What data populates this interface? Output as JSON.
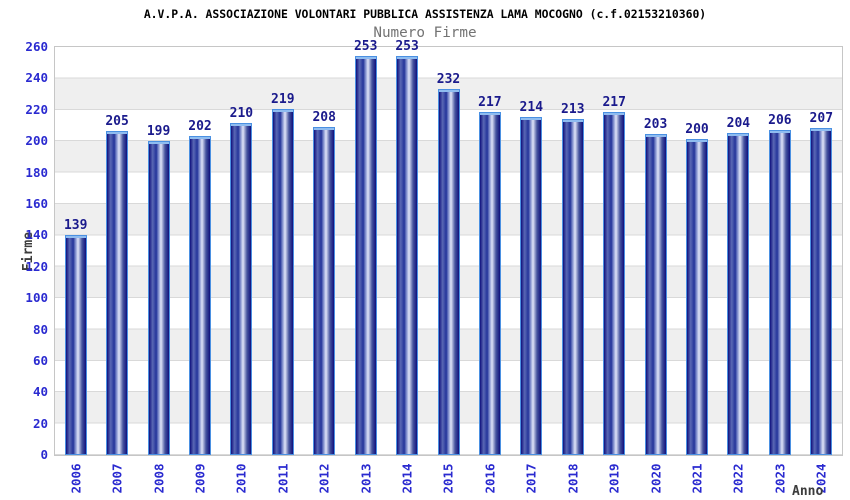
{
  "header": {
    "title": "A.V.P.A. ASSOCIAZIONE VOLONTARI PUBBLICA ASSISTENZA LAMA MOCOGNO (c.f.02153210360)",
    "subtitle": "Numero Firme"
  },
  "chart_data": {
    "type": "bar",
    "title": "Numero Firme",
    "xlabel": "Anno",
    "ylabel": "Firme",
    "categories": [
      "2006",
      "2007",
      "2008",
      "2009",
      "2010",
      "2011",
      "2012",
      "2013",
      "2014",
      "2015",
      "2016",
      "2017",
      "2018",
      "2019",
      "2020",
      "2021",
      "2022",
      "2023",
      "2024"
    ],
    "values": [
      139,
      205,
      199,
      202,
      210,
      219,
      208,
      253,
      253,
      232,
      217,
      214,
      213,
      217,
      203,
      200,
      204,
      206,
      207
    ],
    "ylim": [
      0,
      260
    ],
    "ytick_step": 20,
    "yticks": [
      0,
      20,
      40,
      60,
      80,
      100,
      120,
      140,
      160,
      180,
      200,
      220,
      240,
      260
    ],
    "grid": "horizontal-bands",
    "legend": "none",
    "colors": {
      "bar_border": "#4a90e2",
      "bar_cap": "#8fbcf0",
      "value_label": "#1a1a8c",
      "tick_label": "#2a2ad0",
      "axis_title": "#3c3c3c",
      "subtitle_gray": "#737373",
      "band_gray": "#efefef",
      "grid_line": "#d9d9d9",
      "plot_border": "#c6c6c6"
    },
    "bar_gradient": [
      "#10107c",
      "#5a68b4",
      "#23339a",
      "#93a0d6",
      "#e0e4f8",
      "#46549f"
    ]
  }
}
